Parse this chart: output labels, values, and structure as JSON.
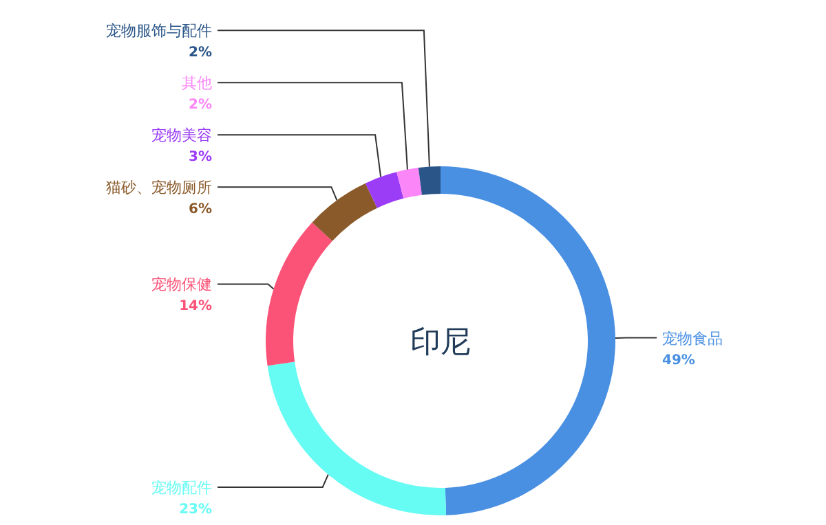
{
  "chart_data": {
    "type": "donut",
    "title": "印尼",
    "categories": [
      "宠物食品",
      "宠物配件",
      "宠物保健",
      "猫砂、宠物厕所",
      "宠物美容",
      "其他",
      "宠物服饰与配件"
    ],
    "values": [
      49,
      23,
      14,
      6,
      3,
      2,
      2
    ],
    "colors": [
      "#4a90e2",
      "#66fbf3",
      "#fb5277",
      "#8b5a2b",
      "#9b3cf7",
      "#fb86f7",
      "#2a5588"
    ],
    "value_labels": [
      "49%",
      "23%",
      "14%",
      "6%",
      "3%",
      "2%",
      "2%"
    ]
  }
}
